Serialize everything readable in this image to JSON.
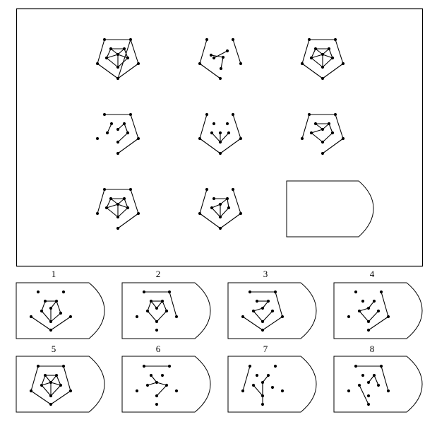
{
  "puzzle": {
    "answer_labels": [
      "1",
      "2",
      "3",
      "4",
      "5",
      "6",
      "7",
      "8"
    ],
    "matrix_cells": [
      {
        "id": "r1c1",
        "dots": [
          [
            148,
            56
          ],
          [
            185,
            56
          ],
          [
            138,
            90
          ],
          [
            196,
            90
          ],
          [
            167,
            111
          ],
          [
            157,
            69
          ],
          [
            176,
            69
          ],
          [
            151,
            82
          ],
          [
            181,
            82
          ],
          [
            167,
            77
          ],
          [
            167,
            95
          ]
        ],
        "lines": [
          [
            0,
            1
          ],
          [
            1,
            4
          ],
          [
            2,
            4
          ],
          [
            0,
            2
          ],
          [
            1,
            3
          ],
          [
            3,
            4
          ],
          [
            5,
            6
          ],
          [
            6,
            8
          ],
          [
            8,
            10
          ],
          [
            10,
            7
          ],
          [
            7,
            5
          ],
          [
            9,
            5
          ],
          [
            9,
            6
          ],
          [
            9,
            7
          ],
          [
            9,
            8
          ],
          [
            9,
            10
          ]
        ]
      },
      {
        "id": "r1c2",
        "dots": [
          [
            293,
            56
          ],
          [
            330,
            56
          ],
          [
            283,
            90
          ],
          [
            341,
            90
          ],
          [
            312,
            111
          ],
          [
            299,
            78
          ],
          [
            322,
            72
          ],
          [
            303,
            82
          ],
          [
            313,
            97
          ],
          [
            316,
            81
          ]
        ],
        "lines": [
          [
            0,
            2
          ],
          [
            2,
            4
          ],
          [
            1,
            3
          ],
          [
            6,
            7
          ],
          [
            5,
            9
          ],
          [
            9,
            8
          ]
        ]
      },
      {
        "id": "r1c3",
        "dots": [
          [
            438,
            56
          ],
          [
            475,
            56
          ],
          [
            428,
            90
          ],
          [
            486,
            90
          ],
          [
            457,
            111
          ],
          [
            447,
            69
          ],
          [
            466,
            69
          ],
          [
            441,
            82
          ],
          [
            471,
            82
          ],
          [
            457,
            77
          ],
          [
            457,
            95
          ]
        ],
        "lines": [
          [
            0,
            1
          ],
          [
            1,
            3
          ],
          [
            3,
            4
          ],
          [
            4,
            2
          ],
          [
            2,
            0
          ],
          [
            5,
            6
          ],
          [
            6,
            8
          ],
          [
            8,
            10
          ],
          [
            10,
            7
          ],
          [
            7,
            5
          ],
          [
            9,
            5
          ],
          [
            9,
            6
          ],
          [
            9,
            7
          ],
          [
            9,
            8
          ],
          [
            9,
            10
          ]
        ]
      },
      {
        "id": "r2c1",
        "dots": [
          [
            148,
            162
          ],
          [
            185,
            162
          ],
          [
            138,
            196
          ],
          [
            196,
            196
          ],
          [
            167,
            217
          ],
          [
            158,
            175
          ],
          [
            176,
            175
          ],
          [
            152,
            188
          ],
          [
            181,
            188
          ],
          [
            167,
            183
          ],
          [
            167,
            201
          ]
        ],
        "lines": [
          [
            0,
            1
          ],
          [
            1,
            3
          ],
          [
            3,
            4
          ],
          [
            5,
            7
          ],
          [
            6,
            8
          ],
          [
            8,
            10
          ],
          [
            9,
            6
          ]
        ]
      },
      {
        "id": "r2c2",
        "dots": [
          [
            293,
            162
          ],
          [
            330,
            162
          ],
          [
            283,
            196
          ],
          [
            341,
            196
          ],
          [
            312,
            217
          ],
          [
            303,
            175
          ],
          [
            322,
            175
          ],
          [
            312,
            188
          ],
          [
            300,
            188
          ],
          [
            324,
            188
          ],
          [
            312,
            201
          ]
        ],
        "lines": [
          [
            0,
            2
          ],
          [
            1,
            3
          ],
          [
            3,
            4
          ],
          [
            4,
            2
          ],
          [
            8,
            10
          ],
          [
            9,
            10
          ],
          [
            7,
            10
          ]
        ]
      },
      {
        "id": "r2c3",
        "dots": [
          [
            438,
            162
          ],
          [
            475,
            162
          ],
          [
            428,
            196
          ],
          [
            486,
            196
          ],
          [
            457,
            217
          ],
          [
            447,
            175
          ],
          [
            466,
            175
          ],
          [
            441,
            188
          ],
          [
            471,
            188
          ],
          [
            457,
            183
          ],
          [
            457,
            201
          ]
        ],
        "lines": [
          [
            0,
            1
          ],
          [
            1,
            3
          ],
          [
            3,
            4
          ],
          [
            0,
            2
          ],
          [
            5,
            6
          ],
          [
            6,
            8
          ],
          [
            8,
            10
          ],
          [
            10,
            7
          ],
          [
            9,
            5
          ],
          [
            9,
            7
          ],
          [
            9,
            6
          ]
        ]
      },
      {
        "id": "r3c1",
        "dots": [
          [
            148,
            268
          ],
          [
            185,
            268
          ],
          [
            138,
            302
          ],
          [
            196,
            302
          ],
          [
            167,
            323
          ],
          [
            157,
            281
          ],
          [
            176,
            281
          ],
          [
            151,
            294
          ],
          [
            181,
            294
          ],
          [
            167,
            289
          ],
          [
            167,
            307
          ]
        ],
        "lines": [
          [
            0,
            1
          ],
          [
            1,
            3
          ],
          [
            3,
            4
          ],
          [
            0,
            2
          ],
          [
            5,
            6
          ],
          [
            6,
            8
          ],
          [
            8,
            10
          ],
          [
            10,
            7
          ],
          [
            7,
            5
          ],
          [
            9,
            5
          ],
          [
            9,
            6
          ],
          [
            9,
            7
          ],
          [
            9,
            8
          ],
          [
            9,
            10
          ]
        ]
      },
      {
        "id": "r3c2",
        "dots": [
          [
            293,
            268
          ],
          [
            330,
            268
          ],
          [
            283,
            302
          ],
          [
            341,
            302
          ],
          [
            312,
            323
          ],
          [
            303,
            281
          ],
          [
            322,
            281
          ],
          [
            300,
            294
          ],
          [
            324,
            294
          ],
          [
            312,
            289
          ],
          [
            312,
            307
          ]
        ],
        "lines": [
          [
            0,
            2
          ],
          [
            2,
            4
          ],
          [
            4,
            3
          ],
          [
            3,
            1
          ],
          [
            5,
            6
          ],
          [
            9,
            6
          ],
          [
            9,
            10
          ],
          [
            10,
            7
          ],
          [
            7,
            9
          ],
          [
            10,
            8
          ],
          [
            8,
            6
          ]
        ]
      }
    ],
    "answer_cells": [
      {
        "id": "ans1",
        "dots": [
          [
            54,
            413
          ],
          [
            90,
            413
          ],
          [
            44,
            448
          ],
          [
            100,
            448
          ],
          [
            72,
            467
          ],
          [
            64,
            426
          ],
          [
            80,
            426
          ],
          [
            59,
            440
          ],
          [
            86,
            443
          ],
          [
            72,
            436
          ],
          [
            72,
            455
          ]
        ],
        "lines": [
          [
            2,
            4
          ],
          [
            4,
            3
          ],
          [
            5,
            6
          ],
          [
            6,
            8
          ],
          [
            8,
            10
          ],
          [
            10,
            7
          ],
          [
            7,
            5
          ],
          [
            9,
            6
          ],
          [
            9,
            10
          ]
        ]
      },
      {
        "id": "ans2",
        "dots": [
          [
            204,
            413
          ],
          [
            240,
            413
          ],
          [
            194,
            448
          ],
          [
            250,
            448
          ],
          [
            222,
            467
          ],
          [
            214,
            426
          ],
          [
            230,
            426
          ],
          [
            209,
            440
          ],
          [
            236,
            440
          ],
          [
            222,
            436
          ],
          [
            222,
            455
          ]
        ],
        "lines": [
          [
            0,
            1
          ],
          [
            1,
            3
          ],
          [
            5,
            6
          ],
          [
            6,
            8
          ],
          [
            8,
            10
          ],
          [
            10,
            7
          ],
          [
            7,
            5
          ],
          [
            9,
            5
          ],
          [
            9,
            6
          ]
        ]
      },
      {
        "id": "ans3",
        "dots": [
          [
            354,
            413
          ],
          [
            390,
            413
          ],
          [
            344,
            448
          ],
          [
            400,
            448
          ],
          [
            372,
            467
          ],
          [
            364,
            426
          ],
          [
            380,
            426
          ],
          [
            359,
            440
          ],
          [
            386,
            440
          ],
          [
            372,
            436
          ],
          [
            372,
            455
          ]
        ],
        "lines": [
          [
            0,
            1
          ],
          [
            1,
            3
          ],
          [
            3,
            4
          ],
          [
            4,
            2
          ],
          [
            5,
            6
          ],
          [
            6,
            9
          ],
          [
            9,
            7
          ],
          [
            7,
            10
          ],
          [
            10,
            8
          ]
        ]
      },
      {
        "id": "ans4",
        "dots": [
          [
            504,
            413
          ],
          [
            540,
            413
          ],
          [
            494,
            448
          ],
          [
            550,
            448
          ],
          [
            522,
            467
          ],
          [
            514,
            426
          ],
          [
            530,
            426
          ],
          [
            509,
            440
          ],
          [
            536,
            440
          ],
          [
            522,
            436
          ],
          [
            522,
            455
          ]
        ],
        "lines": [
          [
            1,
            3
          ],
          [
            3,
            4
          ],
          [
            7,
            10
          ],
          [
            10,
            8
          ],
          [
            9,
            7
          ],
          [
            6,
            9
          ]
        ]
      },
      {
        "id": "ans5",
        "dots": [
          [
            54,
            518
          ],
          [
            90,
            518
          ],
          [
            44,
            553
          ],
          [
            100,
            553
          ],
          [
            72,
            572
          ],
          [
            64,
            531
          ],
          [
            80,
            531
          ],
          [
            59,
            545
          ],
          [
            86,
            545
          ],
          [
            72,
            541
          ],
          [
            72,
            560
          ]
        ],
        "lines": [
          [
            0,
            1
          ],
          [
            1,
            3
          ],
          [
            3,
            4
          ],
          [
            4,
            2
          ],
          [
            2,
            0
          ],
          [
            5,
            6
          ],
          [
            6,
            8
          ],
          [
            8,
            10
          ],
          [
            10,
            7
          ],
          [
            7,
            5
          ],
          [
            9,
            5
          ],
          [
            9,
            6
          ],
          [
            9,
            7
          ],
          [
            9,
            8
          ],
          [
            9,
            10
          ]
        ]
      },
      {
        "id": "ans6",
        "dots": [
          [
            204,
            518
          ],
          [
            240,
            518
          ],
          [
            194,
            553
          ],
          [
            250,
            553
          ],
          [
            222,
            572
          ],
          [
            214,
            531
          ],
          [
            230,
            531
          ],
          [
            209,
            545
          ],
          [
            236,
            545
          ],
          [
            222,
            541
          ],
          [
            222,
            560
          ]
        ],
        "lines": [
          [
            0,
            1
          ],
          [
            7,
            9
          ],
          [
            9,
            8
          ],
          [
            10,
            8
          ],
          [
            9,
            5
          ]
        ]
      },
      {
        "id": "ans7",
        "dots": [
          [
            354,
            518
          ],
          [
            390,
            518
          ],
          [
            344,
            553
          ],
          [
            400,
            553
          ],
          [
            372,
            572
          ],
          [
            364,
            531
          ],
          [
            380,
            531
          ],
          [
            359,
            545
          ],
          [
            386,
            548
          ],
          [
            372,
            541
          ],
          [
            372,
            560
          ]
        ],
        "lines": [
          [
            0,
            2
          ],
          [
            4,
            9
          ],
          [
            9,
            10
          ],
          [
            10,
            7
          ],
          [
            9,
            6
          ]
        ]
      },
      {
        "id": "ans8",
        "dots": [
          [
            504,
            518
          ],
          [
            540,
            518
          ],
          [
            494,
            553
          ],
          [
            550,
            553
          ],
          [
            522,
            572
          ],
          [
            514,
            531
          ],
          [
            530,
            531
          ],
          [
            509,
            545
          ],
          [
            536,
            545
          ],
          [
            522,
            541
          ],
          [
            522,
            560
          ]
        ],
        "lines": [
          [
            0,
            1
          ],
          [
            1,
            3
          ],
          [
            4,
            7
          ],
          [
            8,
            6
          ],
          [
            9,
            6
          ]
        ]
      }
    ]
  }
}
